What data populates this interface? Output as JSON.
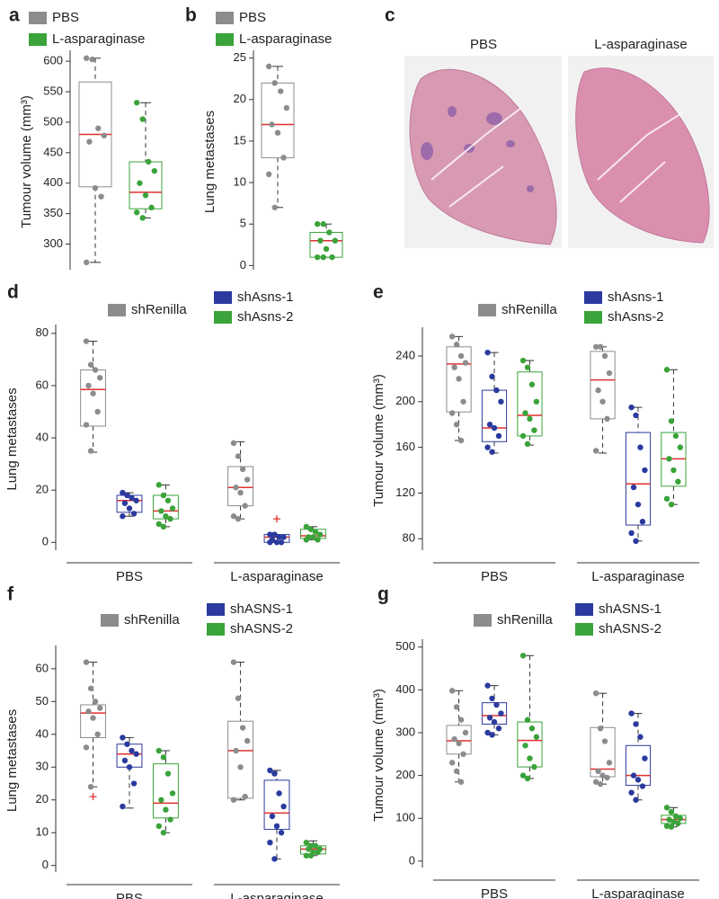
{
  "chart_data": [
    {
      "type": "box",
      "panel": "a",
      "ylabel": "Tumour volume (mm³)",
      "ylim": [
        258,
        612
      ],
      "yticks": [
        300,
        350,
        400,
        450,
        500,
        550,
        600
      ],
      "median_color": "#e03030",
      "series": [
        {
          "name": "PBS",
          "color": "#8c8c8c",
          "boxes": [
            {
              "min": 270,
              "q1": 394,
              "median": 480,
              "q3": 566,
              "max": 605,
              "points": [
                605,
                603,
                490,
                478,
                468,
                392,
                378,
                270
              ]
            }
          ]
        },
        {
          "name": "L-asparaginase",
          "color": "#3aa33a",
          "boxes": [
            {
              "min": 343,
              "q1": 358,
              "median": 385,
              "q3": 435,
              "max": 532,
              "points": [
                532,
                505,
                435,
                420,
                400,
                380,
                360,
                352,
                343
              ]
            }
          ]
        }
      ]
    },
    {
      "type": "box",
      "panel": "b",
      "ylabel": "Lung metastases",
      "ylim": [
        -0.5,
        25.5
      ],
      "yticks": [
        0,
        5,
        10,
        15,
        20,
        25
      ],
      "median_color": "#e03030",
      "series": [
        {
          "name": "PBS",
          "color": "#8c8c8c",
          "boxes": [
            {
              "min": 7,
              "q1": 13,
              "median": 17,
              "q3": 22,
              "max": 24,
              "points": [
                24,
                22,
                21,
                19,
                17,
                16,
                13,
                11,
                7
              ]
            }
          ]
        },
        {
          "name": "L-asparaginase",
          "color": "#3aa33a",
          "boxes": [
            {
              "min": 1,
              "q1": 1,
              "median": 3,
              "q3": 4,
              "max": 5,
              "points": [
                5,
                5,
                4,
                3,
                3,
                2,
                1,
                1,
                1
              ]
            }
          ]
        }
      ]
    },
    {
      "type": "image",
      "panel": "c",
      "titles": [
        "PBS",
        "L-asparaginase"
      ]
    },
    {
      "type": "box",
      "panel": "d",
      "ylabel": "Lung metastases",
      "ylim": [
        -3,
        82
      ],
      "yticks": [
        0,
        20,
        40,
        60,
        80
      ],
      "median_color": "#e03030",
      "categories": [
        "PBS",
        "L-asparaginase"
      ],
      "series": [
        {
          "name": "shRenilla",
          "color": "#8c8c8c",
          "boxes": [
            {
              "min": 34.5,
              "q1": 44.5,
              "median": 58.5,
              "q3": 66,
              "max": 77,
              "points": [
                77,
                68,
                66,
                63,
                60,
                57,
                50,
                45,
                35
              ]
            },
            {
              "min": 9,
              "q1": 14,
              "median": 21,
              "q3": 29,
              "max": 38.5,
              "points": [
                38,
                33,
                28,
                24,
                21,
                19,
                14,
                10,
                9
              ]
            }
          ]
        },
        {
          "name": "shAsns-1",
          "color": "#2b3a9e",
          "boxes": [
            {
              "min": 10,
              "q1": 11.5,
              "median": 16,
              "q3": 18,
              "max": 19,
              "points": [
                19,
                18,
                17,
                16,
                15,
                13,
                11,
                10
              ]
            },
            {
              "min": 0,
              "q1": 0,
              "median": 2,
              "q3": 3,
              "max": 3,
              "points": [
                3,
                3,
                2,
                2,
                1,
                0,
                0,
                0
              ],
              "outliers": [
                9
              ]
            }
          ]
        },
        {
          "name": "shAsns-2",
          "color": "#3aa33a",
          "boxes": [
            {
              "min": 6,
              "q1": 9,
              "median": 12,
              "q3": 18,
              "max": 22,
              "points": [
                22,
                18,
                16,
                13,
                12,
                10,
                9,
                7,
                6
              ]
            },
            {
              "min": 1,
              "q1": 1.5,
              "median": 2.5,
              "q3": 5,
              "max": 6,
              "points": [
                6,
                5,
                4,
                3,
                2,
                2,
                1,
                1
              ]
            }
          ]
        }
      ]
    },
    {
      "type": "box",
      "panel": "e",
      "ylabel": "Tumour volume (mm³)",
      "ylim": [
        70,
        262
      ],
      "yticks": [
        80,
        120,
        160,
        200,
        240
      ],
      "median_color": "#e03030",
      "categories": [
        "PBS",
        "L-asparaginase"
      ],
      "series": [
        {
          "name": "shRenilla",
          "color": "#8c8c8c",
          "boxes": [
            {
              "min": 166,
              "q1": 191,
              "median": 233,
              "q3": 248,
              "max": 257,
              "points": [
                257,
                250,
                240,
                234,
                230,
                220,
                200,
                190,
                180,
                166
              ]
            },
            {
              "min": 155,
              "q1": 185,
              "median": 219,
              "q3": 244,
              "max": 248,
              "points": [
                248,
                248,
                240,
                225,
                210,
                200,
                185,
                157
              ]
            }
          ]
        },
        {
          "name": "shAsns-1",
          "color": "#2b3a9e",
          "boxes": [
            {
              "min": 155,
              "q1": 165,
              "median": 177,
              "q3": 210,
              "max": 243,
              "points": [
                243,
                222,
                210,
                200,
                180,
                177,
                170,
                160,
                156
              ]
            },
            {
              "min": 78,
              "q1": 92,
              "median": 128,
              "q3": 173,
              "max": 195,
              "points": [
                195,
                188,
                160,
                140,
                125,
                110,
                95,
                85,
                78
              ]
            }
          ]
        },
        {
          "name": "shAsns-2",
          "color": "#3aa33a",
          "boxes": [
            {
              "min": 162,
              "q1": 170,
              "median": 188,
              "q3": 226,
              "max": 236,
              "points": [
                236,
                230,
                215,
                200,
                190,
                185,
                175,
                170,
                163
              ]
            },
            {
              "min": 110,
              "q1": 126,
              "median": 150,
              "q3": 173,
              "max": 228,
              "points": [
                228,
                183,
                170,
                160,
                150,
                140,
                130,
                115,
                110
              ]
            }
          ]
        }
      ]
    },
    {
      "type": "box",
      "panel": "f",
      "ylabel": "Lung metastases",
      "ylim": [
        -2,
        66
      ],
      "yticks": [
        0,
        10,
        20,
        30,
        40,
        50,
        60
      ],
      "median_color": "#e03030",
      "categories": [
        "PBS",
        "L-asparaginase"
      ],
      "series": [
        {
          "name": "shRenilla",
          "color": "#8c8c8c",
          "boxes": [
            {
              "min": 24,
              "q1": 39,
              "median": 46.5,
              "q3": 49,
              "max": 62,
              "points": [
                62,
                54,
                50,
                48,
                47,
                45,
                40,
                36,
                24
              ],
              "outliers": [
                21
              ]
            },
            {
              "min": 20,
              "q1": 20.5,
              "median": 35,
              "q3": 44,
              "max": 62,
              "points": [
                62,
                51,
                42,
                38,
                35,
                30,
                21,
                20
              ]
            }
          ]
        },
        {
          "name": "shASNS-1",
          "color": "#2b3a9e",
          "boxes": [
            {
              "min": 17.5,
              "q1": 30,
              "median": 34,
              "q3": 37,
              "max": 39,
              "points": [
                39,
                37,
                35,
                34,
                32,
                30,
                25,
                18
              ]
            },
            {
              "min": 2,
              "q1": 11,
              "median": 16,
              "q3": 26,
              "max": 29,
              "points": [
                29,
                28,
                22,
                18,
                15,
                12,
                10,
                7,
                2
              ]
            }
          ]
        },
        {
          "name": "shASNS-2",
          "color": "#3aa33a",
          "boxes": [
            {
              "min": 10,
              "q1": 14.5,
              "median": 19,
              "q3": 31,
              "max": 35,
              "points": [
                35,
                33,
                28,
                22,
                20,
                17,
                14,
                12,
                10
              ]
            },
            {
              "min": 3,
              "q1": 3.5,
              "median": 5,
              "q3": 6,
              "max": 7.5,
              "points": [
                7,
                6,
                6,
                5,
                5,
                4,
                4,
                3,
                3
              ]
            }
          ]
        }
      ]
    },
    {
      "type": "box",
      "panel": "g",
      "ylabel": "Tumour volume (mm³)",
      "ylim": [
        -15,
        510
      ],
      "yticks": [
        0,
        100,
        200,
        300,
        400,
        500
      ],
      "median_color": "#e03030",
      "categories": [
        "PBS",
        "L-asparaginase"
      ],
      "series": [
        {
          "name": "shRenilla",
          "color": "#8c8c8c",
          "boxes": [
            {
              "min": 185,
              "q1": 250,
              "median": 281,
              "q3": 317,
              "max": 398,
              "points": [
                398,
                360,
                330,
                300,
                285,
                275,
                250,
                230,
                210,
                185
              ]
            },
            {
              "min": 180,
              "q1": 197,
              "median": 215,
              "q3": 312,
              "max": 392,
              "points": [
                392,
                310,
                280,
                230,
                210,
                200,
                195,
                185,
                180
              ]
            }
          ]
        },
        {
          "name": "shASNS-1",
          "color": "#2b3a9e",
          "boxes": [
            {
              "min": 295,
              "q1": 320,
              "median": 340,
              "q3": 370,
              "max": 410,
              "points": [
                410,
                380,
                365,
                345,
                335,
                325,
                310,
                300,
                295
              ]
            },
            {
              "min": 143,
              "q1": 177,
              "median": 200,
              "q3": 270,
              "max": 345,
              "points": [
                345,
                320,
                290,
                240,
                200,
                190,
                175,
                160,
                143
              ]
            }
          ]
        },
        {
          "name": "shASNS-2",
          "color": "#3aa33a",
          "boxes": [
            {
              "min": 193,
              "q1": 220,
              "median": 282,
              "q3": 325,
              "max": 480,
              "points": [
                480,
                330,
                310,
                290,
                270,
                240,
                220,
                200,
                193
              ]
            },
            {
              "min": 80,
              "q1": 88,
              "median": 97,
              "q3": 107,
              "max": 125,
              "points": [
                125,
                115,
                105,
                100,
                97,
                92,
                88,
                82,
                80
              ]
            }
          ]
        }
      ]
    }
  ]
}
